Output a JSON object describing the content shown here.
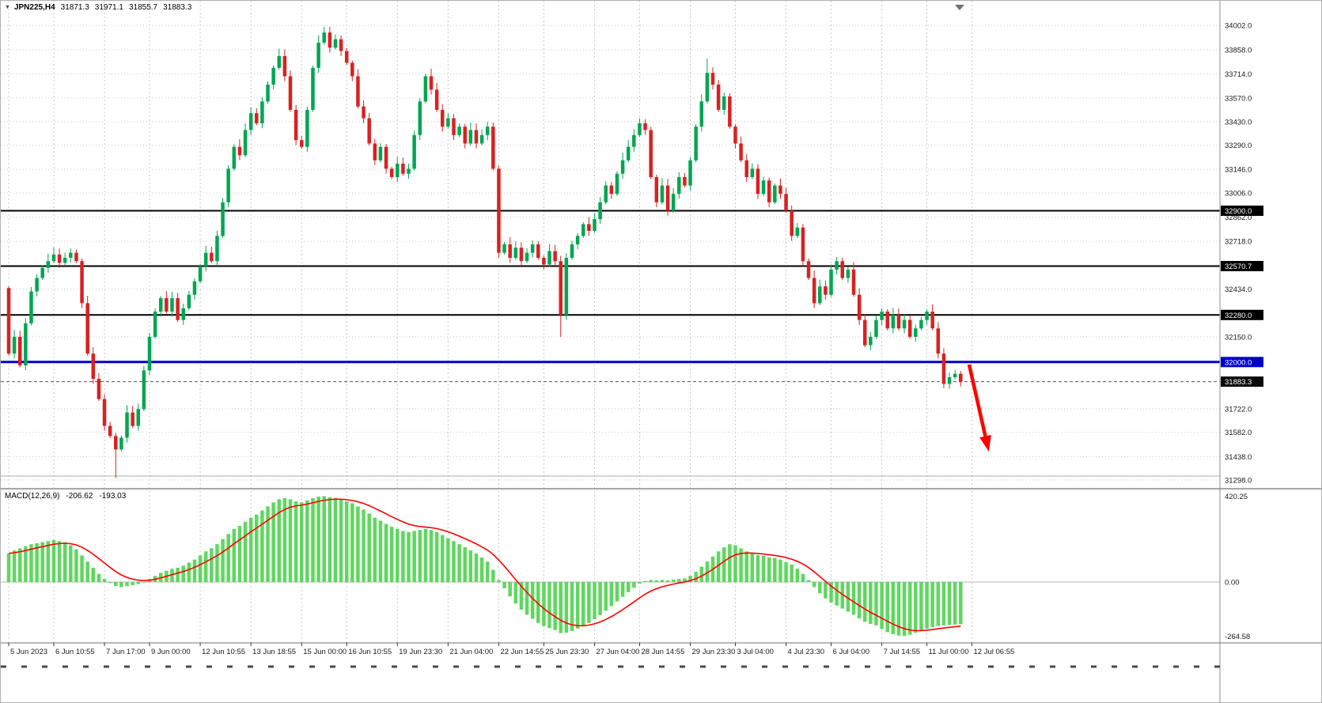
{
  "colors": {
    "bull_candle": "#00A651",
    "bear_candle": "#D82121",
    "macd_histogram": "#5FD75F",
    "macd_signal": "#FF0000",
    "grid": "#C9C9C9",
    "axis_text": "#1A1A1A",
    "separator": "#8C8C8C",
    "arrow": "#FF0000",
    "tag_text": "#FFFFFF",
    "current_tag_bg": "#0A0A0A"
  },
  "symbol_bar": {
    "dropdown_icon": "▼",
    "symbol": "JPN225,H4",
    "open": "31871.3",
    "high": "31971.1",
    "low": "31855.7",
    "close": "31883.3"
  },
  "indicator_label": {
    "name": "MACD(12,26,9)",
    "macd": "-206.62",
    "signal": "-193.03"
  },
  "chart_data": [
    {
      "type": "candlestick",
      "symbol": "JPN225",
      "timeframe": "H4",
      "ohlc_current": {
        "open": 31871.3,
        "high": 31971.1,
        "low": 31855.7,
        "close": 31883.3
      },
      "ylim": [
        31270,
        34130
      ],
      "first_open": 32440,
      "closes": [
        32050,
        32150,
        31980,
        32230,
        32420,
        32500,
        32560,
        32600,
        32640,
        32590,
        32620,
        32650,
        32600,
        32350,
        32050,
        31900,
        31780,
        31620,
        31560,
        31480,
        31550,
        31700,
        31620,
        31720,
        31950,
        32150,
        32300,
        32380,
        32300,
        32380,
        32250,
        32320,
        32400,
        32480,
        32570,
        32650,
        32600,
        32750,
        32950,
        33150,
        33280,
        33230,
        33380,
        33480,
        33420,
        33550,
        33650,
        33750,
        33820,
        33700,
        33500,
        33320,
        33280,
        33500,
        33750,
        33900,
        33960,
        33870,
        33920,
        33850,
        33780,
        33700,
        33520,
        33450,
        33300,
        33200,
        33280,
        33150,
        33100,
        33180,
        33120,
        33150,
        33350,
        33550,
        33700,
        33620,
        33500,
        33400,
        33450,
        33350,
        33400,
        33300,
        33380,
        33300,
        33350,
        33400,
        33150,
        32650,
        32700,
        32620,
        32680,
        32600,
        32650,
        32700,
        32620,
        32580,
        32660,
        32600,
        32280,
        32620,
        32700,
        32750,
        32820,
        32780,
        32850,
        32950,
        33050,
        33000,
        33120,
        33200,
        33280,
        33350,
        33420,
        33380,
        33100,
        32950,
        33050,
        32900,
        33000,
        33100,
        33050,
        33200,
        33400,
        33550,
        33720,
        33650,
        33500,
        33580,
        33400,
        33300,
        33200,
        33100,
        33150,
        33000,
        33080,
        32950,
        33050,
        33000,
        32900,
        32750,
        32800,
        32600,
        32500,
        32350,
        32450,
        32400,
        32550,
        32600,
        32500,
        32550,
        32400,
        32250,
        32100,
        32150,
        32250,
        32300,
        32200,
        32280,
        32200,
        32250,
        32150,
        32200,
        32250,
        32300,
        32200,
        32050,
        31870,
        31910,
        31930,
        31883.3
      ],
      "wick_high_overrides": {
        "56": 33995,
        "124": 33805
      },
      "wick_low_overrides": {
        "19": 31310,
        "98": 32150,
        "166": 31845
      },
      "y_ticks": [
        {
          "v": 34002,
          "t": "34002.0"
        },
        {
          "v": 33858,
          "t": "33858.0"
        },
        {
          "v": 33714,
          "t": "33714.0"
        },
        {
          "v": 33570,
          "t": "33570.0"
        },
        {
          "v": 33430,
          "t": "33430.0"
        },
        {
          "v": 33290,
          "t": "33290.0"
        },
        {
          "v": 33146,
          "t": "33146.0"
        },
        {
          "v": 33006,
          "t": "33006.0"
        },
        {
          "v": 32862,
          "t": "32862.0"
        },
        {
          "v": 32718,
          "t": "32718.0"
        },
        {
          "v": 32434,
          "t": "32434.0"
        },
        {
          "v": 32150,
          "t": "32150.0"
        },
        {
          "v": 31722,
          "t": "31722.0"
        },
        {
          "v": 31582,
          "t": "31582.0"
        },
        {
          "v": 31438,
          "t": "31438.0"
        },
        {
          "v": 31298,
          "t": "31298.0"
        }
      ],
      "levels": [
        {
          "v": 32900,
          "t": "32900.0",
          "color": "#000000",
          "w": 2,
          "tag": true
        },
        {
          "v": 32570.7,
          "t": "32570.7",
          "color": "#000000",
          "w": 2,
          "tag": true
        },
        {
          "v": 32280,
          "t": "32280.0",
          "color": "#000000",
          "w": 2,
          "tag": true
        },
        {
          "v": 32000,
          "t": "32000.0",
          "color": "#0000CC",
          "w": 3,
          "tag": true
        },
        {
          "v": 31322,
          "t": "",
          "color": "#ABABAB",
          "w": 1,
          "tag": false
        }
      ],
      "current_price": {
        "v": 31883.3,
        "t": "31883.3"
      },
      "x_ticks": {
        "labels": [
          "5 Jun 2023",
          "6 Jun 10:55",
          "7 Jun 17:00",
          "9 Jun 00:00",
          "12 Jun 10:55",
          "13 Jun 18:55",
          "15 Jun 00:00",
          "16 Jun 10:55",
          "19 Jun 23:30",
          "21 Jun 04:00",
          "22 Jun 14:55",
          "25 Jun 23:30",
          "27 Jun 04:00",
          "28 Jun 14:55",
          "29 Jun 23:30",
          "3 Jul 04:00",
          "4 Jul 23:30",
          "6 Jul 04:00",
          "7 Jul 14:55",
          "11 Jul 00:00",
          "12 Jul 06:55"
        ],
        "bar_index": [
          0,
          8,
          17,
          25,
          34,
          43,
          52,
          60,
          69,
          78,
          87,
          95,
          104,
          112,
          121,
          129,
          138,
          146,
          155,
          163,
          171
        ]
      },
      "annotations": [
        {
          "type": "arrow",
          "color": "#FF0000",
          "from_bar": 170.5,
          "from_price": 31985,
          "to_bar": 174,
          "to_price": 31467
        }
      ]
    },
    {
      "type": "bar",
      "name": "MACD(12,26,9)",
      "macd_current": -206.62,
      "signal_current": -193.03,
      "ylim": [
        -290,
        445
      ],
      "values": [
        140,
        155,
        165,
        175,
        185,
        190,
        195,
        200,
        205,
        200,
        195,
        180,
        160,
        130,
        100,
        70,
        40,
        15,
        -5,
        -20,
        -25,
        -20,
        -15,
        -10,
        0,
        15,
        30,
        45,
        55,
        65,
        70,
        80,
        95,
        110,
        130,
        150,
        165,
        185,
        210,
        235,
        260,
        275,
        295,
        315,
        330,
        350,
        370,
        390,
        405,
        410,
        405,
        395,
        390,
        400,
        410,
        418,
        420,
        415,
        412,
        405,
        395,
        385,
        370,
        355,
        335,
        315,
        300,
        285,
        270,
        260,
        250,
        245,
        250,
        255,
        260,
        255,
        245,
        230,
        215,
        200,
        185,
        170,
        155,
        140,
        120,
        100,
        60,
        10,
        -30,
        -70,
        -105,
        -135,
        -160,
        -180,
        -200,
        -215,
        -225,
        -235,
        -250,
        -248,
        -240,
        -228,
        -215,
        -200,
        -182,
        -162,
        -140,
        -118,
        -95,
        -72,
        -50,
        -28,
        -8,
        5,
        10,
        8,
        10,
        8,
        12,
        15,
        18,
        30,
        50,
        75,
        100,
        125,
        150,
        170,
        185,
        180,
        165,
        150,
        140,
        132,
        128,
        120,
        118,
        110,
        98,
        85,
        65,
        40,
        10,
        -25,
        -55,
        -80,
        -100,
        -115,
        -130,
        -145,
        -160,
        -178,
        -195,
        -205,
        -212,
        -230,
        -245,
        -255,
        -262,
        -264,
        -258,
        -248,
        -238,
        -228,
        -220,
        -215,
        -212,
        -210,
        -208,
        -206.62
      ],
      "y_ticks": [
        {
          "v": 420.25,
          "t": "420.25"
        },
        {
          "v": 0,
          "t": "0.00"
        },
        {
          "v": -264.58,
          "t": "-264.58"
        }
      ]
    }
  ]
}
